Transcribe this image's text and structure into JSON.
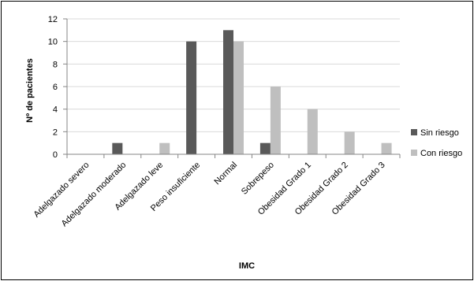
{
  "chart_data": {
    "type": "bar",
    "title": "",
    "xlabel": "IMC",
    "ylabel": "Nº de pacientes",
    "ylim": [
      0,
      12
    ],
    "yticks": [
      0,
      2,
      4,
      6,
      8,
      10,
      12
    ],
    "grid": true,
    "legend_position": "right",
    "categories": [
      "Adelgazado severo",
      "Adelgazado moderado",
      "Adelgazado leve",
      "Peso insuficiente",
      "Normal",
      "Sobrepeso",
      "Obesidad Grado 1",
      "Obesidad Grado 2",
      "Obesidad Grado 3"
    ],
    "series": [
      {
        "name": "Sin riesgo",
        "color": "#595959",
        "values": [
          0,
          1,
          0,
          10,
          11,
          1,
          0,
          0,
          0
        ]
      },
      {
        "name": "Con riesgo",
        "color": "#bfbfbf",
        "values": [
          0,
          0,
          1,
          0,
          10,
          6,
          4,
          2,
          1
        ]
      }
    ]
  }
}
